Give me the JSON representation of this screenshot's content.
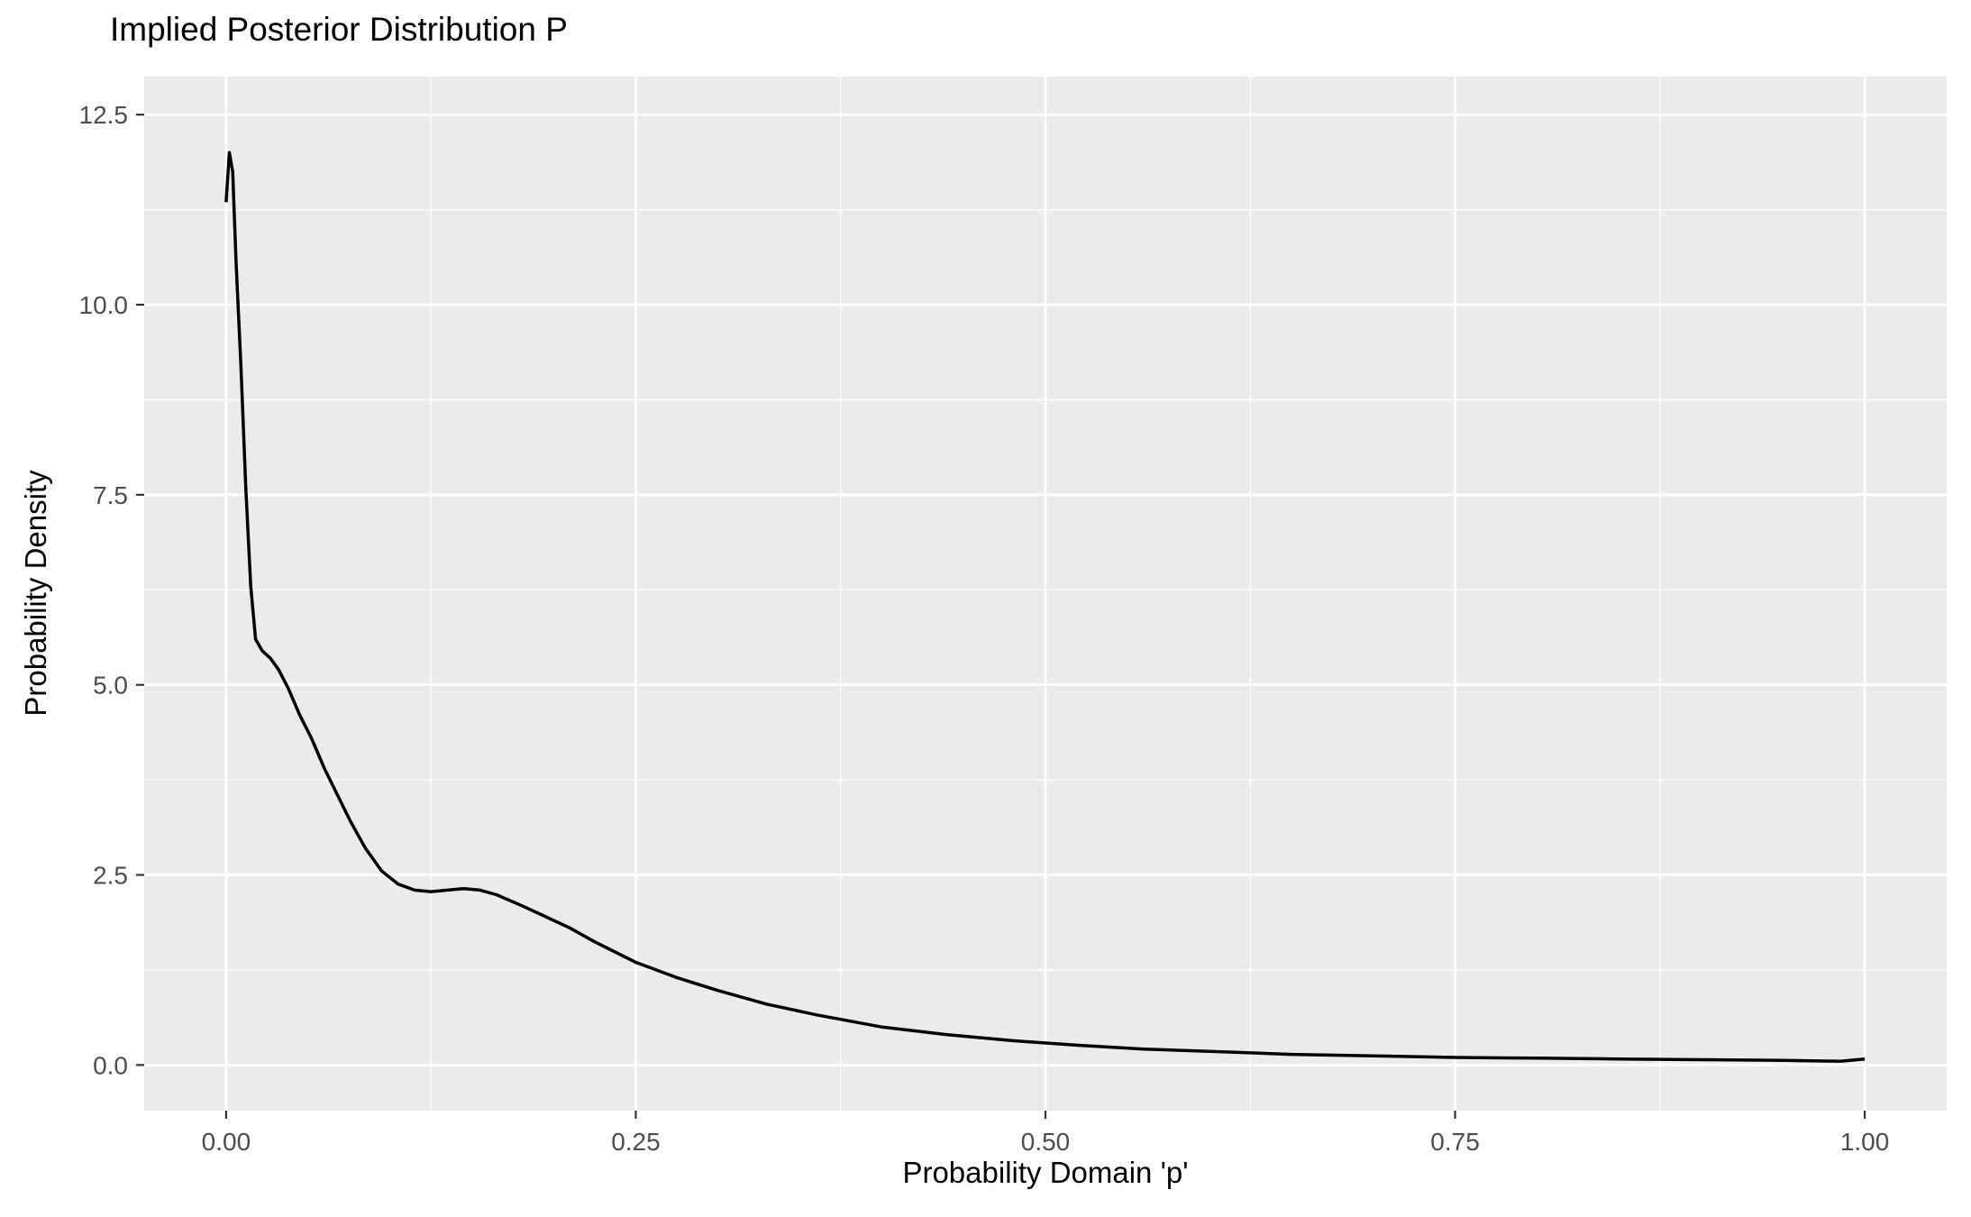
{
  "chart_data": {
    "type": "line",
    "title": "Implied Posterior Distribution P",
    "xlabel": "Probability Domain 'p'",
    "ylabel": "Probability Density",
    "x_ticks": [
      0.0,
      0.25,
      0.5,
      0.75,
      1.0
    ],
    "x_tick_labels": [
      "0.00",
      "0.25",
      "0.50",
      "0.75",
      "1.00"
    ],
    "y_ticks": [
      0.0,
      2.5,
      5.0,
      7.5,
      10.0,
      12.5
    ],
    "y_tick_labels": [
      "0.0",
      "2.5",
      "5.0",
      "7.5",
      "10.0",
      "12.5"
    ],
    "xlim": [
      0,
      1
    ],
    "ylim": [
      0,
      12.5
    ],
    "x_range": [
      -0.05,
      1.05
    ],
    "y_range": [
      -0.6,
      13.0
    ],
    "grid": true,
    "minor_grid": true,
    "legend": "none",
    "panel_background": "#EBEBEB",
    "grid_color": "#FFFFFF",
    "line_color": "#000000",
    "tick_label_color": "#4D4D4D",
    "tick_mark_color": "#333333",
    "series": [
      {
        "name": "posterior-density",
        "x": [
          0.0,
          0.002,
          0.004,
          0.006,
          0.009,
          0.012,
          0.015,
          0.018,
          0.022,
          0.027,
          0.032,
          0.038,
          0.045,
          0.052,
          0.06,
          0.068,
          0.076,
          0.085,
          0.095,
          0.105,
          0.115,
          0.125,
          0.135,
          0.145,
          0.155,
          0.165,
          0.18,
          0.195,
          0.21,
          0.225,
          0.25,
          0.275,
          0.3,
          0.33,
          0.36,
          0.4,
          0.44,
          0.48,
          0.52,
          0.56,
          0.6,
          0.65,
          0.7,
          0.75,
          0.8,
          0.85,
          0.9,
          0.95,
          0.985,
          1.0
        ],
        "y": [
          11.35,
          12.0,
          11.75,
          10.6,
          9.2,
          7.6,
          6.3,
          5.6,
          5.45,
          5.35,
          5.2,
          4.95,
          4.6,
          4.3,
          3.9,
          3.55,
          3.2,
          2.85,
          2.55,
          2.38,
          2.3,
          2.28,
          2.3,
          2.32,
          2.3,
          2.24,
          2.1,
          1.95,
          1.8,
          1.62,
          1.35,
          1.15,
          0.98,
          0.8,
          0.66,
          0.5,
          0.4,
          0.32,
          0.26,
          0.21,
          0.18,
          0.14,
          0.12,
          0.1,
          0.09,
          0.08,
          0.07,
          0.06,
          0.05,
          0.08
        ]
      }
    ]
  }
}
